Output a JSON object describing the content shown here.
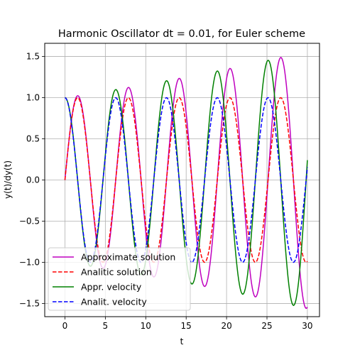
{
  "chart_data": {
    "type": "line",
    "title": "Harmonic Oscillator dt = 0.01, for Euler scheme",
    "xlabel": "t",
    "ylabel": "y(t)/dy(t)",
    "xlim": [
      -2.5,
      31.5
    ],
    "ylim": [
      -1.66,
      1.66
    ],
    "xticks": [
      0,
      5,
      10,
      15,
      20,
      25,
      30
    ],
    "yticks": [
      -1.5,
      -1.0,
      -0.5,
      0.0,
      0.5,
      1.0,
      1.5
    ],
    "xtick_labels": [
      "0",
      "5",
      "10",
      "15",
      "20",
      "25",
      "30"
    ],
    "ytick_labels": [
      "−1.5",
      "−1.0",
      "−0.5",
      "0.0",
      "0.5",
      "1.0",
      "1.5"
    ],
    "grid": true,
    "legend_position": "bottom-left",
    "x": {
      "start": 0,
      "end": 30,
      "step": 0.1
    },
    "dt": 0.01,
    "series": [
      {
        "name": "Approximate solution",
        "color": "#bf00bf",
        "style": "solid",
        "formula": "growth^t * sin(t)",
        "growth": 1.015
      },
      {
        "name": "Analitic solution",
        "color": "#ff0000",
        "style": "dashed",
        "formula": "sin(t)"
      },
      {
        "name": "Appr. velocity",
        "color": "#008000",
        "style": "solid",
        "formula": "growth^t * cos(t)",
        "growth": 1.015
      },
      {
        "name": "Analit. velocity",
        "color": "#0000ff",
        "style": "dashed",
        "formula": "cos(t)"
      }
    ]
  }
}
